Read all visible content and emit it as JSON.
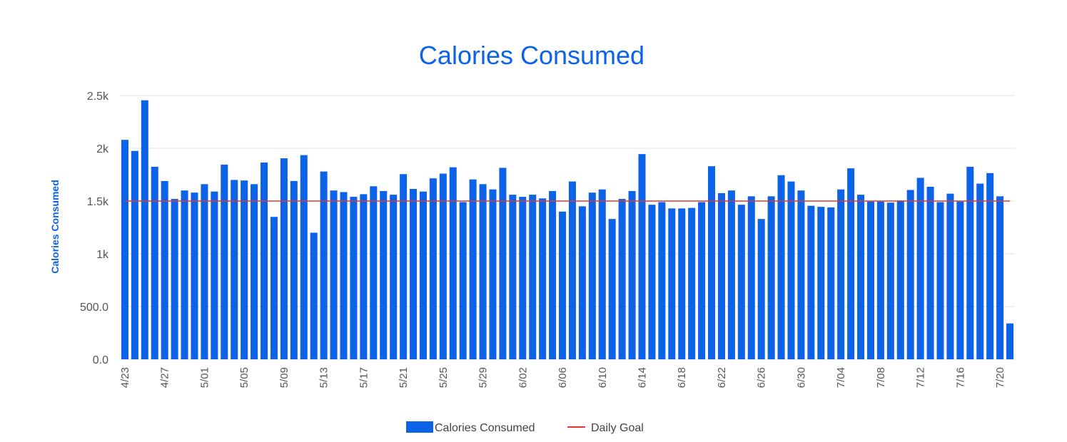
{
  "chart_data": {
    "type": "bar",
    "title": "Calories Consumed",
    "ylabel": "Calories Consumed",
    "xlabel": "",
    "ylim": [
      0,
      2500
    ],
    "yticks": [
      {
        "value": 0,
        "label": "0.0"
      },
      {
        "value": 500,
        "label": "500.0"
      },
      {
        "value": 1000,
        "label": "1k"
      },
      {
        "value": 1500,
        "label": "1.5k"
      },
      {
        "value": 2000,
        "label": "2k"
      },
      {
        "value": 2500,
        "label": "2.5k"
      }
    ],
    "grid": true,
    "legend_position": "bottom",
    "start_date": "4/23",
    "tick_labels": [
      "4/23",
      "4/27",
      "5/01",
      "5/05",
      "5/09",
      "5/13",
      "5/17",
      "5/21",
      "5/25",
      "5/29",
      "6/02",
      "6/06",
      "6/10",
      "6/14",
      "6/18",
      "6/22",
      "6/26",
      "6/30",
      "7/04",
      "7/08",
      "7/12",
      "7/16",
      "7/20"
    ],
    "series": [
      {
        "name": "Calories Consumed",
        "color": "#0d63e8",
        "values": [
          2080,
          1975,
          2455,
          1825,
          1690,
          1520,
          1600,
          1580,
          1660,
          1590,
          1845,
          1700,
          1695,
          1660,
          1865,
          1350,
          1905,
          1690,
          1935,
          1200,
          1780,
          1600,
          1585,
          1540,
          1565,
          1640,
          1595,
          1560,
          1755,
          1615,
          1590,
          1715,
          1760,
          1820,
          1490,
          1705,
          1660,
          1610,
          1815,
          1560,
          1540,
          1560,
          1525,
          1595,
          1400,
          1685,
          1450,
          1580,
          1610,
          1330,
          1520,
          1595,
          1945,
          1465,
          1490,
          1430,
          1430,
          1435,
          1490,
          1830,
          1575,
          1600,
          1465,
          1545,
          1330,
          1545,
          1745,
          1685,
          1600,
          1455,
          1445,
          1440,
          1610,
          1810,
          1560,
          1495,
          1495,
          1485,
          1505,
          1605,
          1720,
          1635,
          1490,
          1570,
          1495,
          1825,
          1665,
          1765,
          1545,
          340
        ]
      },
      {
        "name": "Daily Goal",
        "color": "#e0392b",
        "value": 1500
      }
    ]
  }
}
